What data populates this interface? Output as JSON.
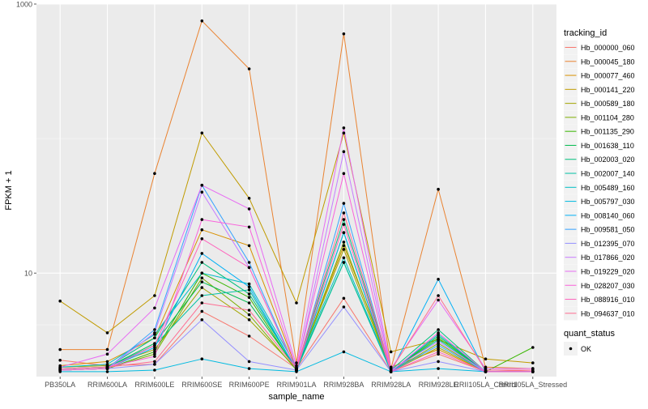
{
  "chart_data": {
    "type": "line",
    "title": "",
    "xlabel": "sample_name",
    "ylabel": "FPKM + 1",
    "y_scale": "log10",
    "ylim": [
      1.7,
      1000
    ],
    "y_ticks": [
      10,
      1000
    ],
    "y_tick_labels": [
      "10",
      "1000"
    ],
    "grid": true,
    "background": "#ebebeb",
    "categories": [
      "PB350LA",
      "RRIM600LA",
      "RRIM600LE",
      "RRIM600SE",
      "RRIM600PE",
      "RRIM901LA",
      "RRIM928BA",
      "RRIM928LA",
      "RRIM928LE",
      "RRII105LA_Control",
      "RRII105LA_Stressed"
    ],
    "legend": {
      "title": "tracking_id",
      "position": "right",
      "quant_status_title": "quant_status",
      "quant_status_label": "OK"
    },
    "series": [
      {
        "name": "Hb_000000_060",
        "color": "#F8766D",
        "values": [
          2.25,
          2.05,
          2.1,
          5.2,
          3.4,
          1.95,
          6.5,
          1.85,
          2.5,
          1.85,
          1.9
        ]
      },
      {
        "name": "Hb_000045_180",
        "color": "#EA8331",
        "values": [
          2.7,
          2.7,
          55,
          750,
          330,
          2.15,
          600,
          1.95,
          42,
          2.0,
          1.95
        ]
      },
      {
        "name": "Hb_000077_460",
        "color": "#D89000",
        "values": [
          2.05,
          2.2,
          3.3,
          21,
          16,
          1.95,
          16,
          2.0,
          2.7,
          1.85,
          1.85
        ]
      },
      {
        "name": "Hb_000141_220",
        "color": "#C09B00",
        "values": [
          6.2,
          3.6,
          6.8,
          110,
          36,
          6.0,
          110,
          2.6,
          3.2,
          2.3,
          2.15
        ]
      },
      {
        "name": "Hb_000589_180",
        "color": "#A3A500",
        "values": [
          2.0,
          2.05,
          2.7,
          7.8,
          4.5,
          1.95,
          15,
          1.85,
          2.8,
          1.85,
          1.85
        ]
      },
      {
        "name": "Hb_001104_280",
        "color": "#7CAE00",
        "values": [
          1.9,
          1.95,
          2.5,
          9.2,
          4.9,
          1.9,
          17,
          1.85,
          3.0,
          1.85,
          1.85
        ]
      },
      {
        "name": "Hb_001135_290",
        "color": "#39B600",
        "values": [
          1.9,
          1.95,
          2.6,
          10,
          6.6,
          1.9,
          20,
          1.85,
          3.3,
          1.85,
          2.8
        ]
      },
      {
        "name": "Hb_001638_110",
        "color": "#00BB4E",
        "values": [
          1.95,
          2.0,
          3.0,
          8.6,
          6.0,
          1.95,
          12,
          1.85,
          3.4,
          1.85,
          1.85
        ]
      },
      {
        "name": "Hb_002003_020",
        "color": "#00BF7D",
        "values": [
          1.95,
          2.0,
          3.3,
          12,
          7.0,
          1.95,
          25,
          1.9,
          3.8,
          1.85,
          1.85
        ]
      },
      {
        "name": "Hb_002007_140",
        "color": "#00C1A3",
        "values": [
          1.95,
          2.0,
          2.9,
          6.8,
          7.5,
          1.9,
          12,
          1.85,
          3.2,
          1.85,
          1.85
        ]
      },
      {
        "name": "Hb_005489_160",
        "color": "#00BFC4",
        "values": [
          2.0,
          2.1,
          3.5,
          10,
          8.3,
          2.0,
          13,
          1.85,
          3.5,
          1.85,
          1.85
        ]
      },
      {
        "name": "Hb_005797_030",
        "color": "#00BAE0",
        "values": [
          1.85,
          1.85,
          1.9,
          2.3,
          1.95,
          1.85,
          2.6,
          1.85,
          1.95,
          1.85,
          1.85
        ]
      },
      {
        "name": "Hb_008140_060",
        "color": "#00B0F6",
        "values": [
          1.9,
          1.95,
          2.8,
          14,
          7.9,
          1.9,
          20,
          1.85,
          9.0,
          1.85,
          1.85
        ]
      },
      {
        "name": "Hb_009581_050",
        "color": "#35A2FF",
        "values": [
          1.9,
          1.95,
          3.8,
          45,
          12,
          1.9,
          33,
          1.85,
          2.9,
          1.85,
          1.85
        ]
      },
      {
        "name": "Hb_012395_070",
        "color": "#9590FF",
        "values": [
          1.9,
          1.95,
          2.1,
          4.5,
          2.2,
          1.9,
          5.6,
          1.85,
          2.2,
          1.85,
          1.85
        ]
      },
      {
        "name": "Hb_017866_020",
        "color": "#C77CFF",
        "values": [
          1.9,
          1.95,
          3.6,
          40,
          11,
          1.9,
          80,
          1.9,
          3.1,
          1.85,
          1.85
        ]
      },
      {
        "name": "Hb_019229_020",
        "color": "#E76BF3",
        "values": [
          2.0,
          2.5,
          5.5,
          45,
          30,
          2.05,
          120,
          1.95,
          6.3,
          1.95,
          1.95
        ]
      },
      {
        "name": "Hb_028207_030",
        "color": "#FA62DB",
        "values": [
          1.95,
          2.0,
          2.4,
          25,
          22,
          1.95,
          55,
          1.85,
          3.6,
          1.85,
          1.85
        ]
      },
      {
        "name": "Hb_088916_010",
        "color": "#FF62BC",
        "values": [
          1.9,
          1.95,
          2.9,
          18,
          11,
          1.9,
          23,
          1.85,
          2.6,
          1.85,
          1.85
        ]
      },
      {
        "name": "Hb_094637_010",
        "color": "#FF6C91",
        "values": [
          1.95,
          2.0,
          2.2,
          6.0,
          5.3,
          1.95,
          28,
          1.9,
          6.8,
          1.9,
          1.9
        ]
      }
    ]
  }
}
